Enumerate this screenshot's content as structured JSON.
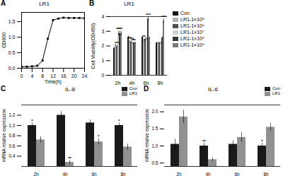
{
  "chart_data": [
    {
      "type": "line",
      "title": "LR1",
      "xlabel": "Time(h)",
      "ylabel": "OD600",
      "x": [
        0,
        2,
        4,
        6,
        8,
        10,
        12,
        14,
        16,
        18,
        20,
        22,
        24
      ],
      "values": [
        0.05,
        0.05,
        0.06,
        0.08,
        0.25,
        0.95,
        1.55,
        1.6,
        1.63,
        1.62,
        1.62,
        1.62,
        1.61
      ],
      "color": "#000000",
      "marker": "square",
      "xlim": [
        0,
        24
      ],
      "xticks": [
        0,
        4,
        8,
        12,
        16,
        20,
        24
      ],
      "ylim": [
        0.0,
        1.8
      ],
      "yticks": [
        {
          "value": 0.0,
          "label": "0.0"
        },
        0.5,
        {
          "value": 1.0,
          "label": "1.0"
        },
        1.5
      ],
      "annotations": [
        "A"
      ]
    },
    {
      "type": "bar",
      "title": "LR1",
      "ylabel": "Cell Viability(OD450)",
      "categories": [
        "2h",
        "4h",
        "6h",
        "8h"
      ],
      "series": [
        {
          "name": "Con",
          "color": "#1a1a1a",
          "values": [
            1.85,
            2.6,
            2.6,
            2.2
          ],
          "errors": [
            0.05,
            0.08,
            0.08,
            0.06
          ],
          "significance": [
            null,
            null,
            null,
            null
          ]
        },
        {
          "name": "LR1-1×10⁵",
          "color": "#b0b0b0",
          "values": [
            2.05,
            2.3,
            2.4,
            2.2
          ],
          "errors": [
            0.08,
            0.1,
            0.1,
            0.06
          ],
          "significance": [
            null,
            "**",
            "**",
            null
          ]
        },
        {
          "name": "LR1-1×10⁶",
          "color": "#505050",
          "values": [
            1.95,
            2.25,
            2.45,
            2.2
          ],
          "errors": [
            0.1,
            0.08,
            0.08,
            0.06
          ],
          "significance": [
            "***",
            "***",
            null,
            null
          ]
        },
        {
          "name": "LR1-1×10⁷",
          "color": "#d0d0d0",
          "values": [
            2.85,
            2.2,
            2.5,
            2.2
          ],
          "errors": [
            0.15,
            0.06,
            0.08,
            0.06
          ],
          "significance": [
            "***",
            "**",
            null,
            null
          ]
        },
        {
          "name": "LR1-1×10⁸",
          "color": "#383838",
          "values": [
            2.85,
            2.2,
            3.85,
            2.55
          ],
          "errors": [
            0.15,
            0.06,
            0.15,
            0.1
          ],
          "significance": [
            "***",
            "**",
            "***",
            null
          ]
        },
        {
          "name": "LR1-1×10⁹",
          "color": "#787878",
          "values": [
            2.85,
            2.2,
            2.55,
            3.7
          ],
          "errors": [
            0.15,
            0.06,
            0.08,
            0.15
          ],
          "significance": [
            null,
            null,
            null,
            "***"
          ]
        }
      ],
      "ylim": [
        0,
        4
      ],
      "yticks": [
        0,
        1,
        2,
        3,
        4
      ],
      "legend": "right",
      "annotations": [
        "B"
      ]
    },
    {
      "type": "bar",
      "title": "IL-8",
      "ylabel": "mRNA relative expression",
      "categories": [
        "2h",
        "4h",
        "6h",
        "8h"
      ],
      "series": [
        {
          "name": "Con",
          "color": "#1a1a1a",
          "values": [
            1.0,
            1.2,
            1.05,
            1.0
          ],
          "errors": [
            0.05,
            0.08,
            0.06,
            0.05
          ],
          "significance": [
            "*",
            null,
            null,
            "*"
          ]
        },
        {
          "name": "LR1",
          "color": "#909090",
          "values": [
            0.72,
            0.28,
            0.68,
            0.58
          ],
          "errors": [
            0.06,
            0.04,
            0.06,
            0.06
          ],
          "significance": [
            null,
            "**",
            "*",
            null
          ]
        }
      ],
      "ylim": [
        0.2,
        1.4
      ],
      "yticks": [
        0.4,
        0.6,
        0.8,
        {
          "value": 1.0,
          "label": "1.0"
        },
        1.2
      ],
      "legend": "upper right",
      "annotations": [
        "C"
      ]
    },
    {
      "type": "bar",
      "title": "IL-6",
      "ylabel": "mRNA relative expression",
      "categories": [
        "2h",
        "4h",
        "6h",
        "8h"
      ],
      "series": [
        {
          "name": "Con",
          "color": "#1a1a1a",
          "values": [
            1.05,
            1.0,
            1.05,
            1.0
          ],
          "errors": [
            0.15,
            0.08,
            0.1,
            0.08
          ],
          "significance": [
            null,
            "**",
            null,
            "*"
          ]
        },
        {
          "name": "LR1",
          "color": "#909090",
          "values": [
            1.85,
            0.6,
            1.25,
            1.55
          ],
          "errors": [
            0.2,
            0.06,
            0.15,
            0.12
          ],
          "significance": [
            null,
            null,
            null,
            null
          ]
        }
      ],
      "ylim": [
        0.4,
        2.2
      ],
      "yticks": [
        {
          "value": 0.5,
          "label": "0.5"
        },
        {
          "value": 1.0,
          "label": "1.0"
        },
        1.5,
        {
          "value": 2.0,
          "label": "2.0"
        }
      ],
      "legend": "upper right",
      "annotations": [
        "D"
      ]
    }
  ]
}
